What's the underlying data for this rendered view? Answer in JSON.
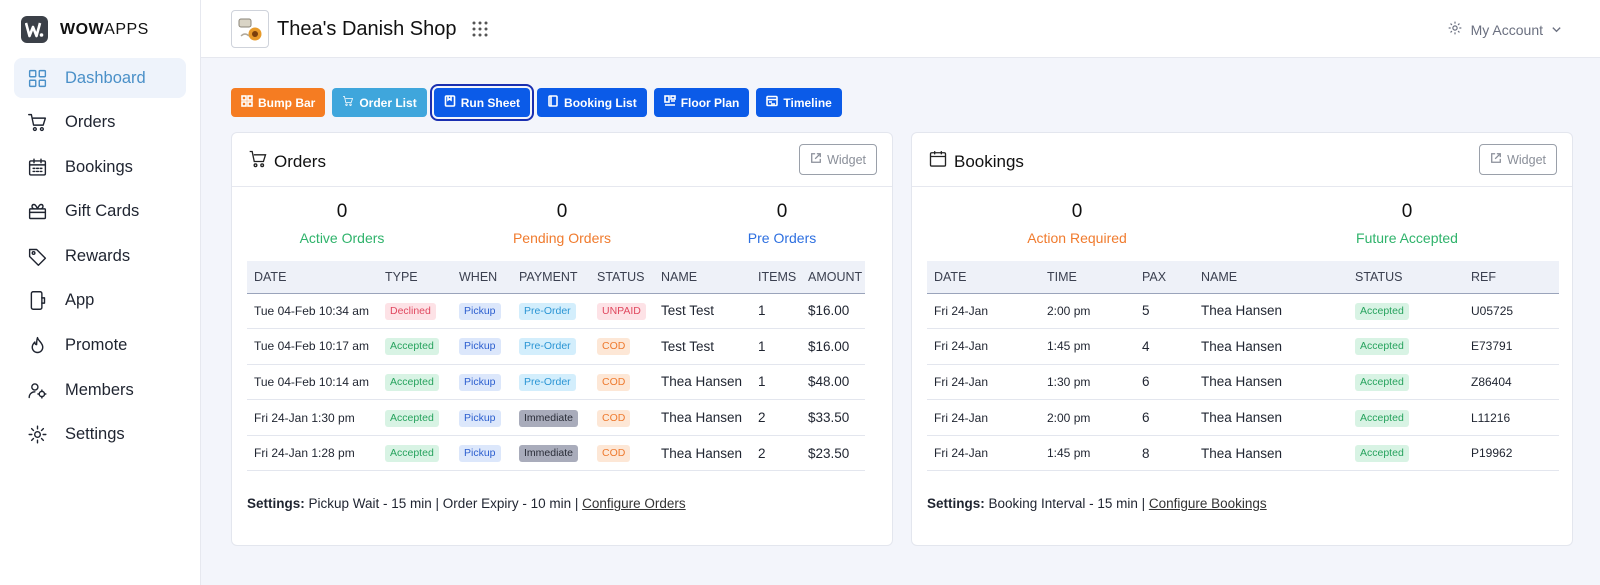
{
  "brand": {
    "bold": "WOW",
    "rest": "APPS"
  },
  "sidebar": {
    "items": [
      {
        "label": "Dashboard",
        "icon": "dashboard-icon",
        "active": true
      },
      {
        "label": "Orders",
        "icon": "cart-icon"
      },
      {
        "label": "Bookings",
        "icon": "calendar-icon"
      },
      {
        "label": "Gift Cards",
        "icon": "gift-icon"
      },
      {
        "label": "Rewards",
        "icon": "tag-icon"
      },
      {
        "label": "App",
        "icon": "phone-icon"
      },
      {
        "label": "Promote",
        "icon": "flame-icon"
      },
      {
        "label": "Members",
        "icon": "members-icon"
      },
      {
        "label": "Settings",
        "icon": "gear-icon"
      }
    ]
  },
  "header": {
    "shop_name": "Thea's Danish Shop",
    "account_label": "My Account"
  },
  "toolbar": {
    "buttons": [
      {
        "label": "Bump Bar",
        "color": "#f57c22",
        "icon": "grid-icon"
      },
      {
        "label": "Order List",
        "color": "#3fa6dc",
        "icon": "cart-icon"
      },
      {
        "label": "Run Sheet",
        "color": "#0b5be8",
        "icon": "sheet-icon",
        "active": true
      },
      {
        "label": "Booking List",
        "color": "#0b5be8",
        "icon": "book-icon"
      },
      {
        "label": "Floor Plan",
        "color": "#0b5be8",
        "icon": "floor-plan-icon"
      },
      {
        "label": "Timeline",
        "color": "#0b5be8",
        "icon": "timeline-icon"
      }
    ]
  },
  "orders": {
    "title": "Orders",
    "widget_label": "Widget",
    "stats": [
      {
        "value": "0",
        "label": "Active Orders",
        "color": "#2fb36b"
      },
      {
        "value": "0",
        "label": "Pending Orders",
        "color": "#f07b2e"
      },
      {
        "value": "0",
        "label": "Pre Orders",
        "color": "#2d6fe0"
      }
    ],
    "columns": [
      "DATE",
      "TYPE",
      "WHEN",
      "PAYMENT",
      "STATUS",
      "NAME",
      "ITEMS",
      "AMOUNT"
    ],
    "rows": [
      {
        "date": "Tue 04-Feb 10:34 am",
        "type": "Declined",
        "when": "Pickup",
        "payment": "Pre-Order",
        "status": "UNPAID",
        "name": "Test Test",
        "items": "1",
        "amount": "$16.00"
      },
      {
        "date": "Tue 04-Feb 10:17 am",
        "type": "Accepted",
        "when": "Pickup",
        "payment": "Pre-Order",
        "status": "COD",
        "name": "Test Test",
        "items": "1",
        "amount": "$16.00"
      },
      {
        "date": "Tue 04-Feb 10:14 am",
        "type": "Accepted",
        "when": "Pickup",
        "payment": "Pre-Order",
        "status": "COD",
        "name": "Thea Hansen",
        "items": "1",
        "amount": "$48.00"
      },
      {
        "date": "Fri 24-Jan 1:30 pm",
        "type": "Accepted",
        "when": "Pickup",
        "payment": "Immediate",
        "status": "COD",
        "name": "Thea Hansen",
        "items": "2",
        "amount": "$33.50"
      },
      {
        "date": "Fri 24-Jan 1:28 pm",
        "type": "Accepted",
        "when": "Pickup",
        "payment": "Immediate",
        "status": "COD",
        "name": "Thea Hansen",
        "items": "2",
        "amount": "$23.50"
      }
    ],
    "settings_label": "Settings:",
    "settings_text": " Pickup Wait - 15 min | Order Expiry - 10 min | ",
    "configure_link": "Configure Orders"
  },
  "bookings": {
    "title": "Bookings",
    "widget_label": "Widget",
    "stats": [
      {
        "value": "0",
        "label": "Action Required",
        "color": "#f07b2e"
      },
      {
        "value": "0",
        "label": "Future Accepted",
        "color": "#2fb36b"
      }
    ],
    "columns": [
      "DATE",
      "TIME",
      "PAX",
      "NAME",
      "STATUS",
      "REF"
    ],
    "rows": [
      {
        "date": "Fri 24-Jan",
        "time": "2:00 pm",
        "pax": "5",
        "name": "Thea Hansen",
        "status": "Accepted",
        "ref": "U05725"
      },
      {
        "date": "Fri 24-Jan",
        "time": "1:45 pm",
        "pax": "4",
        "name": "Thea Hansen",
        "status": "Accepted",
        "ref": "E73791"
      },
      {
        "date": "Fri 24-Jan",
        "time": "1:30 pm",
        "pax": "6",
        "name": "Thea Hansen",
        "status": "Accepted",
        "ref": "Z86404"
      },
      {
        "date": "Fri 24-Jan",
        "time": "2:00 pm",
        "pax": "6",
        "name": "Thea Hansen",
        "status": "Accepted",
        "ref": "L11216"
      },
      {
        "date": "Fri 24-Jan",
        "time": "1:45 pm",
        "pax": "8",
        "name": "Thea Hansen",
        "status": "Accepted",
        "ref": "P19962"
      }
    ],
    "settings_label": "Settings:",
    "settings_text": " Booking Interval - 15 min | ",
    "configure_link": "Configure Bookings"
  },
  "badge_colors": {
    "Declined": {
      "bg": "#fde2e6",
      "fg": "#e0485f"
    },
    "Accepted": {
      "bg": "#d8f3e4",
      "fg": "#27a35e"
    },
    "Pickup": {
      "bg": "#dce7fb",
      "fg": "#2d5fcf"
    },
    "Pre-Order": {
      "bg": "#d3eefc",
      "fg": "#2b95d4"
    },
    "Immediate": {
      "bg": "#a9acbb",
      "fg": "#2a2d38"
    },
    "UNPAID": {
      "bg": "#fde2e6",
      "fg": "#e0485f"
    },
    "COD": {
      "bg": "#fde7d6",
      "fg": "#ee7a2f"
    }
  }
}
